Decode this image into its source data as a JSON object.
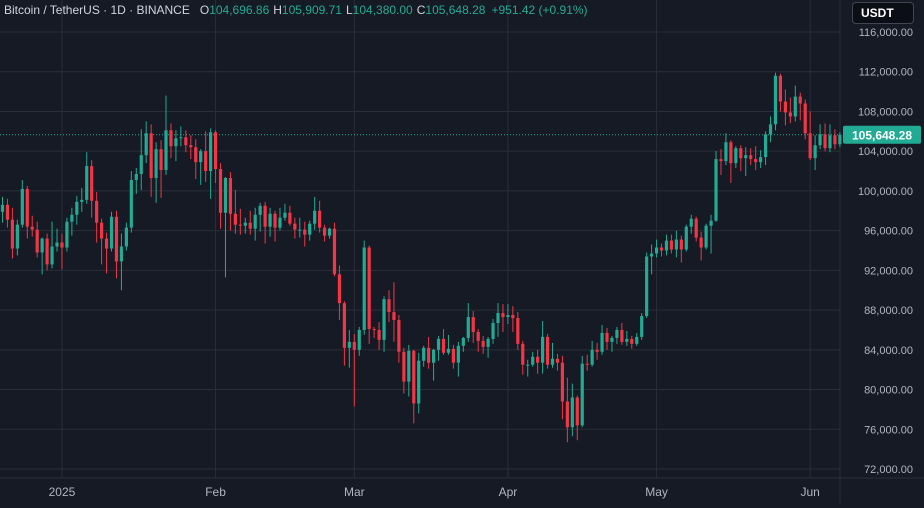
{
  "header": {
    "symbol": "Bitcoin / TetherUS · 1D · BINANCE",
    "open_label": "O",
    "open": "104,696.86",
    "high_label": "H",
    "high": "105,909.71",
    "low_label": "L",
    "low": "104,380.00",
    "close_label": "C",
    "close": "105,648.28",
    "change": "+951.42 (+0.91%)"
  },
  "currency_button": "USDT",
  "last_price_label": "105,648.28",
  "colors": {
    "up": "#22ab94",
    "down": "#f23645",
    "background": "#161a25",
    "grid": "#2a2e39",
    "text": "#d1d4dc"
  },
  "chart_data": {
    "type": "candlestick",
    "title": "Bitcoin / TetherUS · 1D · BINANCE",
    "y_ticks": [
      72000,
      76000,
      80000,
      84000,
      88000,
      92000,
      96000,
      100000,
      104000,
      108000,
      112000,
      116000
    ],
    "y_tick_labels": [
      "72,000.00",
      "76,000.00",
      "80,000.00",
      "84,000.00",
      "88,000.00",
      "92,000.00",
      "96,000.00",
      "100,000.00",
      "104,000.00",
      "108,000.00",
      "112,000.00",
      "116,000.00"
    ],
    "x_ticks": [
      {
        "label": "2025",
        "index": 12
      },
      {
        "label": "Feb",
        "index": 43
      },
      {
        "label": "Mar",
        "index": 71
      },
      {
        "label": "Apr",
        "index": 102
      },
      {
        "label": "May",
        "index": 132
      },
      {
        "label": "Jun",
        "index": 163
      }
    ],
    "ylim": [
      71000,
      118000
    ],
    "last_price": 105648.28,
    "candles": [
      [
        97900,
        99400,
        96800,
        98600
      ],
      [
        98600,
        99200,
        96300,
        97100
      ],
      [
        97100,
        98300,
        93200,
        94200
      ],
      [
        94200,
        97100,
        93500,
        96600
      ],
      [
        96600,
        101100,
        96300,
        100200
      ],
      [
        100200,
        100500,
        95200,
        96400
      ],
      [
        96400,
        97500,
        95400,
        96100
      ],
      [
        96100,
        96900,
        93300,
        93800
      ],
      [
        93800,
        95300,
        91600,
        95200
      ],
      [
        95200,
        95700,
        92000,
        92600
      ],
      [
        92600,
        96900,
        92200,
        94400
      ],
      [
        94400,
        96200,
        93900,
        94800
      ],
      [
        94800,
        95700,
        92100,
        94300
      ],
      [
        94300,
        97300,
        93900,
        96900
      ],
      [
        96900,
        98300,
        95500,
        97600
      ],
      [
        97600,
        99500,
        96600,
        98900
      ],
      [
        98900,
        100300,
        97900,
        99100
      ],
      [
        99100,
        103900,
        98700,
        102500
      ],
      [
        102500,
        103100,
        97300,
        99000
      ],
      [
        99000,
        99900,
        94800,
        96800
      ],
      [
        96800,
        97200,
        92600,
        95200
      ],
      [
        95200,
        95800,
        91700,
        94200
      ],
      [
        94200,
        97900,
        93900,
        97400
      ],
      [
        97400,
        98000,
        91200,
        92900
      ],
      [
        92900,
        95700,
        90000,
        94400
      ],
      [
        94400,
        96800,
        94000,
        96300
      ],
      [
        96300,
        102000,
        95800,
        101100
      ],
      [
        101100,
        102300,
        99700,
        101700
      ],
      [
        101700,
        106200,
        100100,
        103600
      ],
      [
        103600,
        107000,
        102800,
        105800
      ],
      [
        105800,
        106700,
        99400,
        101300
      ],
      [
        101300,
        104900,
        98800,
        104200
      ],
      [
        104200,
        105100,
        99300,
        102100
      ],
      [
        102100,
        109600,
        101600,
        106100
      ],
      [
        106100,
        106800,
        103300,
        104500
      ],
      [
        104500,
        106100,
        103000,
        105300
      ],
      [
        105300,
        106500,
        104500,
        105400
      ],
      [
        105400,
        106100,
        103900,
        104600
      ],
      [
        104600,
        105600,
        103200,
        104400
      ],
      [
        104400,
        105200,
        101200,
        102900
      ],
      [
        102900,
        104200,
        100600,
        104000
      ],
      [
        104000,
        106000,
        100900,
        102000
      ],
      [
        102000,
        106300,
        99200,
        105900
      ],
      [
        105900,
        106100,
        100800,
        102200
      ],
      [
        102200,
        102800,
        96200,
        97800
      ],
      [
        97800,
        101400,
        91300,
        101300
      ],
      [
        101300,
        101900,
        96000,
        97700
      ],
      [
        97700,
        100100,
        95700,
        96600
      ],
      [
        96600,
        98200,
        95600,
        96500
      ],
      [
        96500,
        97300,
        95700,
        96800
      ],
      [
        96800,
        98000,
        95600,
        96200
      ],
      [
        96200,
        98300,
        95000,
        97600
      ],
      [
        97600,
        98800,
        95900,
        98500
      ],
      [
        98500,
        98900,
        94700,
        96400
      ],
      [
        96400,
        98300,
        95400,
        97700
      ],
      [
        97700,
        98000,
        94900,
        96300
      ],
      [
        96300,
        98300,
        96000,
        97300
      ],
      [
        97300,
        98700,
        97000,
        97800
      ],
      [
        97800,
        98500,
        96500,
        96700
      ],
      [
        96700,
        97300,
        95200,
        96100
      ],
      [
        96100,
        97300,
        95300,
        96100
      ],
      [
        96100,
        96900,
        94400,
        95600
      ],
      [
        95600,
        97000,
        95000,
        96700
      ],
      [
        96700,
        99400,
        96100,
        98000
      ],
      [
        98000,
        99000,
        95800,
        96300
      ],
      [
        96300,
        96600,
        94900,
        95500
      ],
      [
        95500,
        96300,
        95200,
        96200
      ],
      [
        96200,
        96800,
        91400,
        91600
      ],
      [
        91600,
        92500,
        87000,
        88700
      ],
      [
        88700,
        88900,
        82400,
        84200
      ],
      [
        84200,
        86000,
        82200,
        84800
      ],
      [
        84800,
        85600,
        78300,
        84000
      ],
      [
        84000,
        86300,
        83400,
        86000
      ],
      [
        86000,
        95000,
        85500,
        94300
      ],
      [
        94300,
        94500,
        84600,
        86100
      ],
      [
        86100,
        86300,
        85200,
        86000
      ],
      [
        86000,
        86800,
        84000,
        85000
      ],
      [
        85000,
        89400,
        83800,
        89100
      ],
      [
        89100,
        90000,
        86800,
        87800
      ],
      [
        87800,
        90800,
        84800,
        87000
      ],
      [
        87000,
        87500,
        82700,
        83800
      ],
      [
        83800,
        84200,
        79600,
        80800
      ],
      [
        80800,
        84500,
        79300,
        83900
      ],
      [
        83900,
        84000,
        76600,
        78600
      ],
      [
        78600,
        83700,
        77600,
        82900
      ],
      [
        82900,
        84400,
        82300,
        84200
      ],
      [
        84200,
        85300,
        82100,
        82700
      ],
      [
        82700,
        84100,
        80900,
        84000
      ],
      [
        84000,
        85400,
        82900,
        85100
      ],
      [
        85100,
        86100,
        83500,
        83700
      ],
      [
        83700,
        85500,
        83500,
        84100
      ],
      [
        84100,
        84500,
        82100,
        82700
      ],
      [
        82700,
        84800,
        81300,
        84400
      ],
      [
        84400,
        85300,
        83800,
        85200
      ],
      [
        85200,
        88700,
        84800,
        87300
      ],
      [
        87300,
        87900,
        84700,
        85800
      ],
      [
        85800,
        86100,
        83800,
        84900
      ],
      [
        84900,
        85400,
        83600,
        84300
      ],
      [
        84300,
        85300,
        83200,
        85100
      ],
      [
        85100,
        87100,
        84600,
        86700
      ],
      [
        86700,
        88700,
        85300,
        87700
      ],
      [
        87700,
        88600,
        85800,
        87300
      ],
      [
        87300,
        88600,
        86600,
        87500
      ],
      [
        87500,
        88400,
        85800,
        87200
      ],
      [
        87200,
        87800,
        84000,
        84600
      ],
      [
        84600,
        84900,
        81500,
        82500
      ],
      [
        82500,
        83000,
        81300,
        82500
      ],
      [
        82500,
        83800,
        82300,
        83300
      ],
      [
        83300,
        84000,
        81600,
        82700
      ],
      [
        82700,
        86900,
        81600,
        85300
      ],
      [
        85300,
        85600,
        82100,
        82500
      ],
      [
        82500,
        84700,
        82200,
        83100
      ],
      [
        83100,
        83600,
        81900,
        82700
      ],
      [
        82700,
        83400,
        77000,
        78800
      ],
      [
        78800,
        81200,
        74700,
        76200
      ],
      [
        76200,
        80600,
        75300,
        79200
      ],
      [
        79200,
        79400,
        74900,
        76400
      ],
      [
        76400,
        83400,
        76200,
        82600
      ],
      [
        82600,
        83500,
        81900,
        82500
      ],
      [
        82500,
        84900,
        82300,
        84000
      ],
      [
        84000,
        84700,
        83000,
        83800
      ],
      [
        83800,
        86500,
        83500,
        85700
      ],
      [
        85700,
        86200,
        84000,
        84800
      ],
      [
        84800,
        85400,
        83800,
        85200
      ],
      [
        85200,
        86300,
        84600,
        86000
      ],
      [
        86000,
        86700,
        84500,
        84800
      ],
      [
        84800,
        85900,
        84400,
        85100
      ],
      [
        85100,
        85400,
        84100,
        84600
      ],
      [
        84600,
        85700,
        84400,
        85300
      ],
      [
        85300,
        87700,
        85000,
        87400
      ],
      [
        87400,
        93800,
        87200,
        93400
      ],
      [
        93400,
        94600,
        91600,
        93700
      ],
      [
        93700,
        95100,
        93300,
        94300
      ],
      [
        94300,
        94700,
        93400,
        94000
      ],
      [
        94000,
        95600,
        93500,
        95000
      ],
      [
        95000,
        95600,
        93700,
        94100
      ],
      [
        94100,
        96000,
        93300,
        95100
      ],
      [
        95100,
        95500,
        92800,
        94100
      ],
      [
        94100,
        96600,
        93900,
        96400
      ],
      [
        96400,
        97600,
        95700,
        97200
      ],
      [
        97200,
        97400,
        94900,
        95300
      ],
      [
        95300,
        95900,
        93000,
        94300
      ],
      [
        94300,
        96700,
        94100,
        96500
      ],
      [
        96500,
        97600,
        93700,
        97000
      ],
      [
        97000,
        104000,
        96900,
        103200
      ],
      [
        103200,
        104200,
        101600,
        103000
      ],
      [
        103000,
        105800,
        102600,
        104900
      ],
      [
        104900,
        105100,
        100800,
        102800
      ],
      [
        102800,
        104500,
        102300,
        104300
      ],
      [
        104300,
        104600,
        102000,
        103300
      ],
      [
        103300,
        104400,
        101500,
        103600
      ],
      [
        103600,
        104300,
        102600,
        103200
      ],
      [
        103200,
        104500,
        102100,
        102900
      ],
      [
        102900,
        104100,
        102300,
        103400
      ],
      [
        103400,
        106000,
        102600,
        105700
      ],
      [
        105700,
        107500,
        104900,
        106700
      ],
      [
        106700,
        111900,
        106100,
        111600
      ],
      [
        111600,
        111800,
        108000,
        109000
      ],
      [
        109000,
        110200,
        106600,
        107900
      ],
      [
        107900,
        109400,
        106800,
        107500
      ],
      [
        107500,
        110600,
        107000,
        109500
      ],
      [
        109500,
        109900,
        107100,
        108800
      ],
      [
        108800,
        109200,
        105200,
        105800
      ],
      [
        105800,
        108000,
        103100,
        103300
      ],
      [
        103300,
        105600,
        102100,
        104600
      ],
      [
        104600,
        106700,
        104200,
        105700
      ],
      [
        105700,
        106800,
        104000,
        104300
      ],
      [
        104300,
        106700,
        103900,
        105600
      ],
      [
        105600,
        106200,
        104200,
        104700
      ],
      [
        104700,
        105900,
        104400,
        105648
      ]
    ]
  }
}
